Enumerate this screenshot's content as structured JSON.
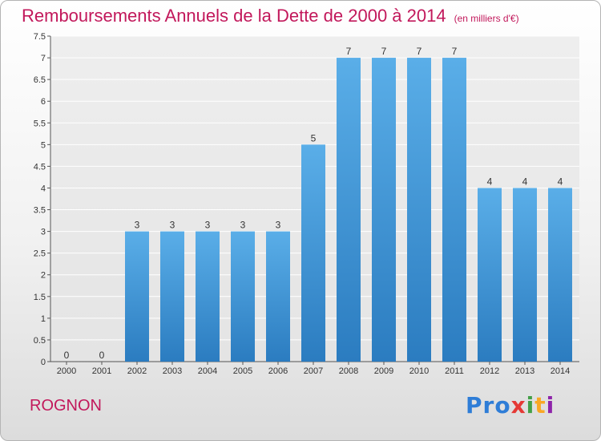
{
  "header": {
    "title": "Remboursements Annuels de la Dette de 2000 à 2014",
    "unit": "(en milliers d'€)"
  },
  "footer": {
    "commune": "ROGNON",
    "logo": [
      "Pro",
      "x",
      "i",
      "t",
      "i"
    ]
  },
  "colors": {
    "bar_top": "#5aaee8",
    "bar_bottom": "#2b7cc0",
    "title": "#c2185b"
  },
  "chart_data": {
    "type": "bar",
    "title": "Remboursements Annuels de la Dette de 2000 à 2014",
    "ylabel": "en milliers d'€",
    "xlabel": "",
    "categories": [
      "2000",
      "2001",
      "2002",
      "2003",
      "2004",
      "2005",
      "2006",
      "2007",
      "2008",
      "2009",
      "2010",
      "2011",
      "2012",
      "2013",
      "2014"
    ],
    "values": [
      0,
      0,
      3,
      3,
      3,
      3,
      3,
      5,
      7,
      7,
      7,
      7,
      4,
      4,
      4
    ],
    "ylim": [
      0,
      7.5
    ],
    "yticks": [
      "0",
      "0.5",
      "1",
      "1.5",
      "2",
      "2.5",
      "3",
      "3.5",
      "4",
      "4.5",
      "5",
      "5.5",
      "6",
      "6.5",
      "7",
      "7.5"
    ],
    "grid": true
  }
}
